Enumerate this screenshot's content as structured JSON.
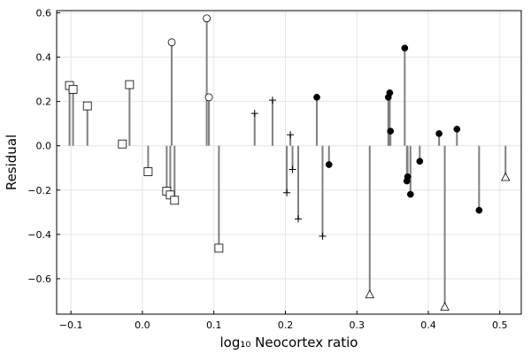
{
  "chart_data": {
    "type": "scatter",
    "style": "stem",
    "xlabel": "log₁₀ Neocortex ratio",
    "ylabel": "Residual",
    "xlim": [
      -0.12,
      0.53
    ],
    "ylim": [
      -0.76,
      0.61
    ],
    "xticks": [
      -0.1,
      0.0,
      0.1,
      0.2,
      0.3,
      0.4,
      0.5
    ],
    "xtick_labels": [
      "−0.1",
      "0.0",
      "0.1",
      "0.2",
      "0.3",
      "0.4",
      "0.5"
    ],
    "yticks": [
      -0.6,
      -0.4,
      -0.2,
      0.0,
      0.2,
      0.4,
      0.6
    ],
    "ytick_labels": [
      "−0.6",
      "−0.4",
      "−0.2",
      "0.0",
      "0.2",
      "0.4",
      "0.6"
    ],
    "grid": true,
    "stem_color": "#808080",
    "series": [
      {
        "marker": "square-open",
        "points": [
          {
            "x": -0.102,
            "y": 0.272
          },
          {
            "x": -0.097,
            "y": 0.255
          },
          {
            "x": -0.077,
            "y": 0.18
          },
          {
            "x": -0.028,
            "y": 0.008
          },
          {
            "x": -0.018,
            "y": 0.276
          },
          {
            "x": 0.008,
            "y": -0.117
          },
          {
            "x": 0.034,
            "y": -0.205
          },
          {
            "x": 0.039,
            "y": -0.222
          },
          {
            "x": 0.045,
            "y": -0.246
          },
          {
            "x": 0.107,
            "y": -0.462
          }
        ]
      },
      {
        "marker": "circle-open",
        "points": [
          {
            "x": 0.041,
            "y": 0.467
          },
          {
            "x": 0.09,
            "y": 0.575
          },
          {
            "x": 0.093,
            "y": 0.219
          }
        ]
      },
      {
        "marker": "plus",
        "points": [
          {
            "x": 0.157,
            "y": 0.146
          },
          {
            "x": 0.182,
            "y": 0.206
          },
          {
            "x": 0.202,
            "y": -0.212
          },
          {
            "x": 0.207,
            "y": 0.05
          },
          {
            "x": 0.21,
            "y": -0.107
          },
          {
            "x": 0.218,
            "y": -0.33
          },
          {
            "x": 0.252,
            "y": -0.408
          }
        ]
      },
      {
        "marker": "circle-filled",
        "points": [
          {
            "x": 0.244,
            "y": 0.219
          },
          {
            "x": 0.261,
            "y": -0.085
          },
          {
            "x": 0.344,
            "y": 0.219
          },
          {
            "x": 0.346,
            "y": 0.239
          },
          {
            "x": 0.347,
            "y": 0.066
          },
          {
            "x": 0.367,
            "y": 0.441
          },
          {
            "x": 0.37,
            "y": -0.159
          },
          {
            "x": 0.371,
            "y": -0.14
          },
          {
            "x": 0.375,
            "y": -0.219
          },
          {
            "x": 0.388,
            "y": -0.07
          },
          {
            "x": 0.415,
            "y": 0.055
          },
          {
            "x": 0.44,
            "y": 0.075
          },
          {
            "x": 0.471,
            "y": -0.291
          }
        ]
      },
      {
        "marker": "triangle-open",
        "points": [
          {
            "x": 0.318,
            "y": -0.672
          },
          {
            "x": 0.423,
            "y": -0.728
          },
          {
            "x": 0.508,
            "y": -0.143
          }
        ]
      }
    ]
  }
}
